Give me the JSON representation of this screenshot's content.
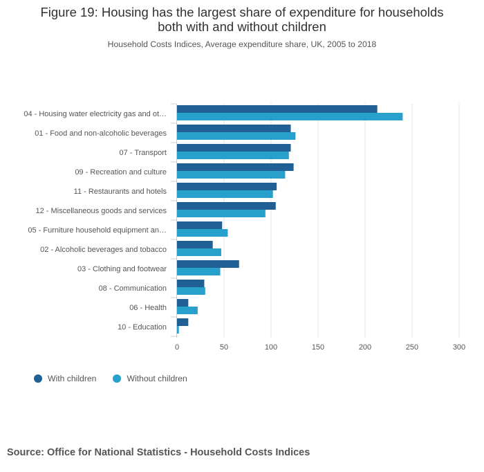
{
  "header": {
    "title_line1": "Figure 19: Housing has the largest share of expenditure for households",
    "title_line2": "both with and without children",
    "subtitle": "Household Costs Indices, Average expenditure share, UK, 2005 to 2018"
  },
  "source": "Source: Office for National Statistics - Household Costs Indices",
  "colors": {
    "with_children": "#206095",
    "without_children": "#27a0cc",
    "grid": "#e0e0e0",
    "axis": "#cccccc",
    "tick_text": "#555555"
  },
  "chart_data": {
    "type": "bar",
    "orientation": "horizontal",
    "title": "Figure 19: Housing has the largest share of expenditure for households both with and without children",
    "subtitle": "Household Costs Indices, Average expenditure share, UK, 2005 to 2018",
    "xlim": [
      0,
      300
    ],
    "xticks": [
      0,
      50,
      100,
      150,
      200,
      250,
      300
    ],
    "grid": true,
    "legend_position": "bottom-left",
    "categories": [
      "04 - Housing water electricity gas and ot…",
      "01 - Food and non-alcoholic beverages",
      "07 - Transport",
      "09 - Recreation and culture",
      "11 - Restaurants and hotels",
      "12 - Miscellaneous goods and services",
      "05 - Furniture household equipment an…",
      "02 - Alcoholic beverages and tobacco",
      "03 - Clothing and footwear",
      "08 - Communication",
      "06 - Health",
      "10 - Education"
    ],
    "series": [
      {
        "name": "With children",
        "values": [
          213,
          121,
          121,
          124,
          106,
          105,
          48,
          38,
          66,
          29,
          12,
          12
        ]
      },
      {
        "name": "Without children",
        "values": [
          240,
          126,
          119,
          115,
          102,
          94,
          54,
          47,
          46,
          30,
          22,
          2
        ]
      }
    ]
  }
}
